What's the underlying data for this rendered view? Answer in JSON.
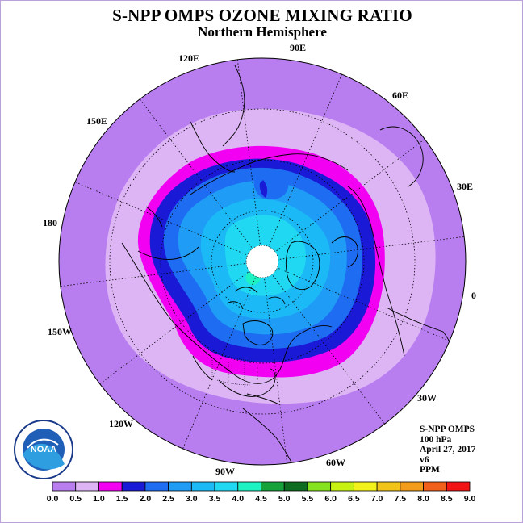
{
  "title": "S-NPP OMPS OZONE MIXING RATIO",
  "subtitle": "Northern Hemisphere",
  "longitude_labels": [
    "90E",
    "60E",
    "30E",
    "0",
    "30W",
    "60W",
    "90W",
    "120W",
    "150W",
    "180",
    "150E",
    "120E"
  ],
  "info": {
    "instrument": "S-NPP OMPS",
    "level": "100 hPa",
    "date": "April 27, 2017",
    "version": "v6",
    "units": "PPM"
  },
  "logo": {
    "text": "NOAA",
    "ring_text": "NATIONAL OCEANIC AND ATMOSPHERIC ADMINISTRATION · U.S. DEPARTMENT OF COMMERCE"
  },
  "colorbar": {
    "ticks": [
      "0.0",
      "0.5",
      "1.0",
      "1.5",
      "2.0",
      "2.5",
      "3.0",
      "3.5",
      "4.0",
      "4.5",
      "5.0",
      "5.5",
      "6.0",
      "6.5",
      "7.0",
      "7.5",
      "8.0",
      "8.5",
      "9.0"
    ],
    "colors": [
      "#b87ef0",
      "#ddb5f5",
      "#f200f2",
      "#1a1ad6",
      "#1e6cf2",
      "#1f9cf5",
      "#1bbaf7",
      "#21d8f2",
      "#1ef2c2",
      "#16a23a",
      "#0e6c20",
      "#86e21c",
      "#c8f214",
      "#f2f21a",
      "#f2c41a",
      "#f29c1a",
      "#f25f1a",
      "#f21414",
      "#7a4a2e"
    ]
  },
  "map_colors": {
    "bin_0_0_5": "#b87ef0",
    "bin_0_5_1_0": "#ddb5f5",
    "bin_1_0_1_5": "#f200f2",
    "bin_1_5_2_0": "#1a1ad6",
    "bin_2_0_2_5": "#1e6cf2",
    "bin_2_5_3_0": "#1f9cf5",
    "bin_3_0_3_5": "#1bbaf7",
    "bin_3_5_4_0": "#21d8f2",
    "bin_4_0_4_5": "#1ef2c2",
    "no_data": "#ffffff"
  }
}
